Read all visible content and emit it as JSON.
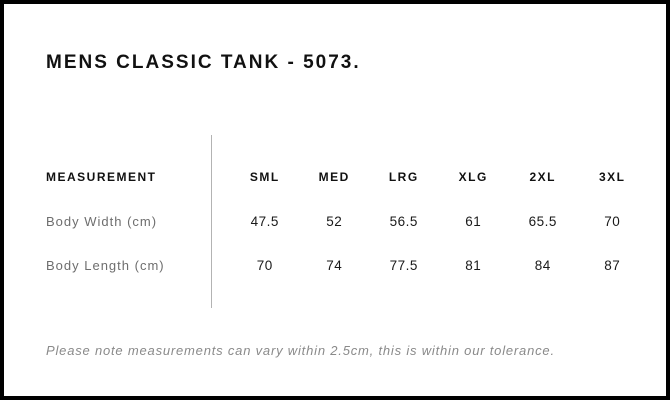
{
  "header": {
    "title": "MENS CLASSIC TANK - 5073."
  },
  "table": {
    "measurement_header": "MEASUREMENT",
    "columns": [
      "SML",
      "MED",
      "LRG",
      "XLG",
      "2XL",
      "3XL"
    ],
    "rows": [
      {
        "label": "Body Width (cm)",
        "values": [
          "47.5",
          "52",
          "56.5",
          "61",
          "65.5",
          "70"
        ]
      },
      {
        "label": "Body Length (cm)",
        "values": [
          "70",
          "74",
          "77.5",
          "81",
          "84",
          "87"
        ]
      }
    ]
  },
  "footer": {
    "note": "Please note measurements can vary within 2.5cm, this is within our tolerance."
  },
  "colors": {
    "frame": "#000000",
    "background": "#ffffff",
    "heading_text": "#111111",
    "row_label_text": "#6e6e6e",
    "value_text": "#1a1a1a",
    "divider": "#b3b3b3",
    "note_text": "#8a8a8a"
  },
  "chart_data": {
    "type": "table",
    "title": "MENS CLASSIC TANK - 5073.",
    "columns": [
      "MEASUREMENT",
      "SML",
      "MED",
      "LRG",
      "XLG",
      "2XL",
      "3XL"
    ],
    "rows": [
      [
        "Body Width (cm)",
        47.5,
        52,
        56.5,
        61,
        65.5,
        70
      ],
      [
        "Body Length (cm)",
        70,
        74,
        77.5,
        81,
        84,
        87
      ]
    ],
    "note": "Please note measurements can vary within 2.5cm, this is within our tolerance."
  }
}
